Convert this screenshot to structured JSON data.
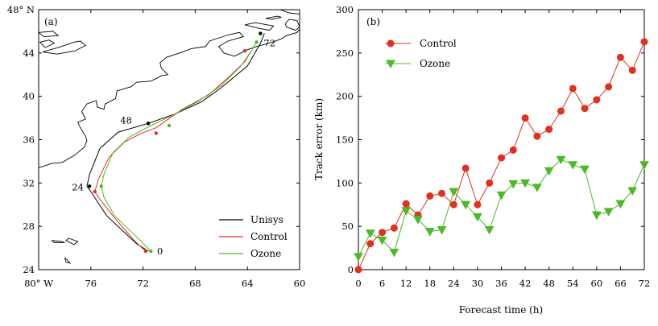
{
  "chart_data": [
    {
      "type": "line",
      "panel": "(a)",
      "title": "",
      "xlabel": "",
      "ylabel": "",
      "xlim": [
        -80,
        -60
      ],
      "ylim": [
        24,
        48
      ],
      "xticks": [
        -80,
        -76,
        -72,
        -68,
        -64,
        -60
      ],
      "xtick_labels": [
        "80° W",
        "76",
        "72",
        "68",
        "64",
        "60"
      ],
      "yticks": [
        24,
        28,
        32,
        36,
        40,
        44,
        48
      ],
      "ytick_labels": [
        "24",
        "28",
        "32",
        "36",
        "40",
        "44",
        "48° N"
      ],
      "colors": {
        "unisys": "#000000",
        "control": "#e03020",
        "ozone": "#4db82a",
        "coast": "#000000"
      },
      "series": [
        {
          "name": "Unisys",
          "color": "#000000",
          "lon": [
            -71.6,
            -72.5,
            -74.8,
            -76.0,
            -76.3,
            -76.1,
            -75.3,
            -73.9,
            -71.6,
            -69.5,
            -67.5,
            -66.0,
            -64.0,
            -63.0,
            -62.7
          ],
          "lat": [
            25.7,
            26.4,
            29.0,
            31.2,
            31.7,
            32.8,
            35.2,
            36.7,
            37.5,
            38.4,
            39.5,
            40.8,
            42.8,
            44.9,
            45.8
          ]
        },
        {
          "name": "Control",
          "color": "#e03020",
          "lon": [
            -71.8,
            -72.6,
            -74.2,
            -75.3,
            -75.7,
            -75.4,
            -74.6,
            -73.4,
            -72.1,
            -71.0,
            -69.0,
            -67.0,
            -65.4,
            -64.2,
            -63.7
          ],
          "lat": [
            25.7,
            26.6,
            28.8,
            30.5,
            31.2,
            32.4,
            34.4,
            35.8,
            36.6,
            37.1,
            38.8,
            40.1,
            41.8,
            43.2,
            44.2
          ]
        },
        {
          "name": "Ozone",
          "color": "#4db82a",
          "lon": [
            -71.4,
            -72.3,
            -74.2,
            -75.0,
            -75.2,
            -75.0,
            -74.3,
            -73.1,
            -71.4,
            -70.0,
            -67.8,
            -66.0,
            -64.5,
            -63.7,
            -63.3
          ],
          "lat": [
            25.7,
            26.8,
            29.0,
            30.7,
            31.7,
            32.8,
            34.8,
            36.2,
            37.3,
            38.1,
            39.5,
            41.0,
            42.8,
            44.2,
            45.0
          ]
        }
      ],
      "markers": [
        {
          "series": "Unisys",
          "lon": -71.6,
          "lat": 37.5
        },
        {
          "series": "Unisys",
          "lon": -76.1,
          "lat": 31.7
        },
        {
          "series": "Unisys",
          "lon": -63.0,
          "lat": 45.8
        },
        {
          "series": "Control",
          "lon": -71.8,
          "lat": 25.7
        },
        {
          "series": "Control",
          "lon": -75.7,
          "lat": 31.2
        },
        {
          "series": "Control",
          "lon": -71.0,
          "lat": 36.6
        },
        {
          "series": "Control",
          "lon": -64.2,
          "lat": 44.2
        },
        {
          "series": "Ozone",
          "lon": -71.4,
          "lat": 25.7
        },
        {
          "series": "Ozone",
          "lon": -75.2,
          "lat": 31.7
        },
        {
          "series": "Ozone",
          "lon": -70.0,
          "lat": 37.3
        },
        {
          "series": "Ozone",
          "lon": -63.3,
          "lat": 45.0
        }
      ],
      "annotations": [
        {
          "text": "0",
          "lon": -70.7,
          "lat": 25.7
        },
        {
          "text": "24",
          "lon": -77.0,
          "lat": 31.6
        },
        {
          "text": "48",
          "lon": -73.3,
          "lat": 37.8
        },
        {
          "text": "72",
          "lon": -62.3,
          "lat": 44.9
        }
      ],
      "legend": {
        "position": "bottom-right",
        "entries": [
          "Unisys",
          "Control",
          "Ozone"
        ]
      },
      "coastline": {
        "mainland": [
          [
            -80,
            33.4
          ],
          [
            -79,
            33.8
          ],
          [
            -78.2,
            33.9
          ],
          [
            -77.2,
            34.6
          ],
          [
            -76.5,
            35.3
          ],
          [
            -76.3,
            35.9
          ],
          [
            -76.4,
            36.3
          ],
          [
            -76.8,
            37.1
          ],
          [
            -77.0,
            37.6
          ],
          [
            -76.4,
            37.9
          ],
          [
            -76.7,
            38.6
          ],
          [
            -76.3,
            39.3
          ],
          [
            -75.6,
            39.6
          ],
          [
            -75.5,
            39.0
          ],
          [
            -75.0,
            38.8
          ],
          [
            -74.9,
            39.3
          ],
          [
            -74.1,
            39.8
          ],
          [
            -74.0,
            40.5
          ],
          [
            -73.7,
            40.6
          ],
          [
            -72.9,
            40.9
          ],
          [
            -72.5,
            41.3
          ],
          [
            -71.4,
            41.4
          ],
          [
            -70.9,
            41.7
          ],
          [
            -70.6,
            41.9
          ],
          [
            -70.1,
            42.0
          ],
          [
            -70.6,
            42.6
          ],
          [
            -70.7,
            43.1
          ],
          [
            -70.2,
            43.6
          ],
          [
            -69.2,
            44.0
          ],
          [
            -68.3,
            44.4
          ],
          [
            -67.2,
            44.6
          ],
          [
            -66.9,
            45.1
          ],
          [
            -65.4,
            45.7
          ],
          [
            -64.6,
            45.9
          ],
          [
            -64.3,
            45.5
          ],
          [
            -65.5,
            45.1
          ],
          [
            -66.2,
            44.6
          ],
          [
            -65.8,
            44.0
          ],
          [
            -65.0,
            43.7
          ],
          [
            -64.0,
            44.3
          ],
          [
            -63.3,
            44.6
          ],
          [
            -62.1,
            45.0
          ],
          [
            -61.4,
            45.3
          ],
          [
            -61.0,
            45.6
          ],
          [
            -60.2,
            45.9
          ],
          [
            -60.0,
            46.2
          ]
        ],
        "islands": [
          [
            [
              -64.2,
              46.6
            ],
            [
              -63.2,
              46.3
            ],
            [
              -62.3,
              46.1
            ],
            [
              -62.0,
              46.5
            ],
            [
              -63.4,
              46.8
            ],
            [
              -64.2,
              46.6
            ]
          ],
          [
            [
              -61.1,
              46.7
            ],
            [
              -60.8,
              47.1
            ],
            [
              -60.2,
              47.0
            ],
            [
              -60.0,
              46.4
            ],
            [
              -60.3,
              46.1
            ],
            [
              -61.0,
              46.4
            ],
            [
              -61.1,
              46.7
            ]
          ],
          [
            [
              -62.6,
              47.2
            ],
            [
              -61.7,
              47.4
            ],
            [
              -61.4,
              47.3
            ],
            [
              -62.1,
              47.1
            ],
            [
              -62.6,
              47.2
            ]
          ],
          [
            [
              -61.5,
              48.0
            ],
            [
              -60.8,
              47.7
            ],
            [
              -60.0,
              47.6
            ],
            [
              -60.0,
              48.0
            ],
            [
              -61.1,
              48.0
            ]
          ],
          [
            [
              -79.7,
              44.1
            ],
            [
              -78.5,
              44.5
            ],
            [
              -77.3,
              45.0
            ],
            [
              -76.8,
              45.1
            ],
            [
              -76.4,
              44.7
            ],
            [
              -77.2,
              44.2
            ],
            [
              -78.6,
              43.9
            ],
            [
              -79.7,
              44.1
            ]
          ],
          [
            [
              -79.5,
              44.5
            ],
            [
              -78.8,
              44.9
            ],
            [
              -79.2,
              45.2
            ],
            [
              -79.9,
              45.0
            ],
            [
              -79.5,
              44.5
            ]
          ],
          [
            [
              -80.0,
              45.9
            ],
            [
              -78.9,
              46.0
            ],
            [
              -78.5,
              45.6
            ],
            [
              -79.6,
              45.5
            ],
            [
              -80.0,
              45.9
            ]
          ],
          [
            [
              -77.7,
              26.9
            ],
            [
              -77.0,
              26.6
            ],
            [
              -77.3,
              26.3
            ],
            [
              -77.9,
              26.7
            ],
            [
              -77.7,
              26.9
            ]
          ],
          [
            [
              -79.0,
              26.7
            ],
            [
              -78.3,
              26.6
            ],
            [
              -78.0,
              26.5
            ],
            [
              -78.8,
              26.5
            ],
            [
              -79.0,
              26.7
            ]
          ],
          [
            [
              -78.0,
              25.1
            ],
            [
              -77.8,
              24.9
            ],
            [
              -77.6,
              24.6
            ],
            [
              -77.9,
              24.7
            ],
            [
              -78.0,
              25.1
            ]
          ]
        ]
      }
    },
    {
      "type": "line",
      "panel": "(b)",
      "title": "",
      "xlabel": "Forecast time (h)",
      "ylabel": "Track error (km)",
      "xlim": [
        0,
        72
      ],
      "ylim": [
        0,
        300
      ],
      "xticks": [
        0,
        6,
        12,
        18,
        24,
        30,
        36,
        42,
        48,
        54,
        60,
        66,
        72
      ],
      "yticks": [
        0,
        50,
        100,
        150,
        200,
        250,
        300
      ],
      "x": [
        0,
        3,
        6,
        9,
        12,
        15,
        18,
        21,
        24,
        27,
        30,
        33,
        36,
        39,
        42,
        45,
        48,
        51,
        54,
        57,
        60,
        63,
        66,
        69,
        72
      ],
      "series": [
        {
          "name": "Control",
          "color": "#e03020",
          "marker": "circle",
          "values": [
            0,
            30,
            43,
            48,
            76,
            63,
            85,
            88,
            75,
            117,
            75,
            100,
            129,
            138,
            175,
            154,
            162,
            183,
            209,
            186,
            196,
            211,
            245,
            230,
            263
          ]
        },
        {
          "name": "Ozone",
          "color": "#4db82a",
          "marker": "triangle-down",
          "values": [
            15,
            42,
            34,
            20,
            68,
            58,
            44,
            46,
            90,
            75,
            61,
            46,
            86,
            99,
            100,
            95,
            114,
            127,
            121,
            116,
            63,
            67,
            76,
            91,
            121
          ]
        }
      ],
      "legend": {
        "position": "top-left",
        "entries": [
          "Control",
          "Ozone"
        ]
      }
    }
  ]
}
